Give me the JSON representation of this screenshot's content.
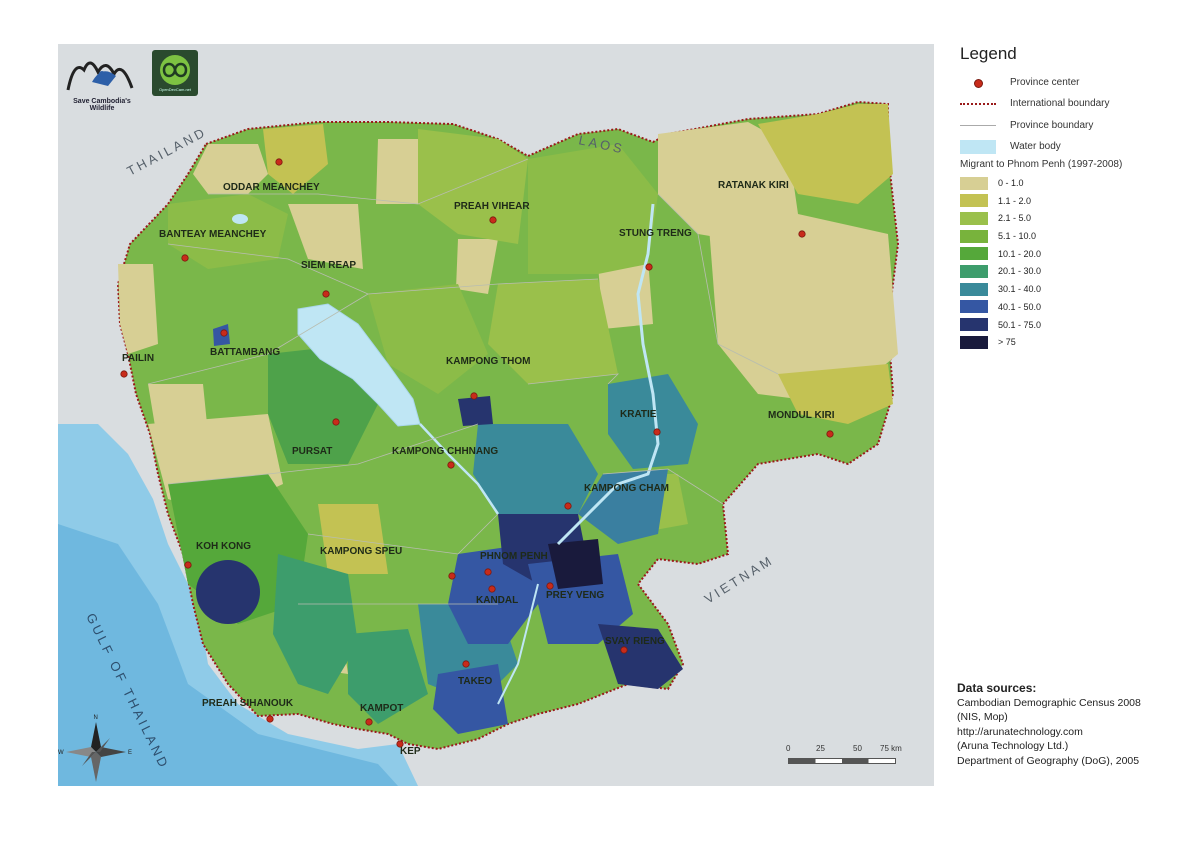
{
  "logos": {
    "save_cambodia_caption": "Save Cambodia's Wildlife",
    "opendevelopment_caption": "OpenDevCam.net"
  },
  "map": {
    "country_labels": [
      "THAILAND",
      "LAOS",
      "VIETNAM"
    ],
    "sea_label": "GULF OF THAILAND",
    "province_labels": [
      "ODDAR MEANCHEY",
      "PREAH VIHEAR",
      "RATANAK KIRI",
      "BANTEAY MEANCHEY",
      "STUNG TRENG",
      "SIEM REAP",
      "PAILIN",
      "BATTAMBANG",
      "KAMPONG THOM",
      "KRATIE",
      "MONDUL KIRI",
      "PURSAT",
      "KAMPONG CHHNANG",
      "KAMPONG CHAM",
      "KOH KONG",
      "KAMPONG SPEU",
      "PHNOM PENH",
      "KANDAL",
      "PREY VENG",
      "SVAY RIENG",
      "TAKEO",
      "PREAH SIHANOUK",
      "KAMPOT",
      "KEP"
    ],
    "compass": {
      "n": "N",
      "s": "S",
      "e": "E",
      "w": "W"
    },
    "colors": {
      "water": "#bfe6f4",
      "boundary": "#9a1a1a",
      "province_center": "#c82b1a"
    }
  },
  "legend": {
    "title": "Legend",
    "symbols": [
      "Province center",
      "International boundary",
      "Province boundary",
      "Water body"
    ],
    "ramp_title": "Migrant to Phnom Penh (1997-2008)",
    "classes": [
      {
        "label": "0 - 1.0",
        "color": "#d7cf94"
      },
      {
        "label": "1.1 - 2.0",
        "color": "#c3c253"
      },
      {
        "label": "2.1 - 5.0",
        "color": "#9ac04b"
      },
      {
        "label": "5.1 - 10.0",
        "color": "#78b33c"
      },
      {
        "label": "10.1 - 20.0",
        "color": "#55a83a"
      },
      {
        "label": "20.1 - 30.0",
        "color": "#3d9d6c"
      },
      {
        "label": "30.1 - 40.0",
        "color": "#3a8a9a"
      },
      {
        "label": "40.1 - 50.0",
        "color": "#3557a3"
      },
      {
        "label": "50.1 - 75.0",
        "color": "#26346e"
      },
      {
        "label": "> 75",
        "color": "#191a3c"
      }
    ]
  },
  "sources": {
    "title": "Data sources:",
    "lines": [
      "Cambodian Demographic Census 2008",
      "(NIS, Mop)",
      "http://arunatechnology.com",
      "(Aruna Technology Ltd.)",
      "Department of Geography (DoG), 2005"
    ]
  },
  "scale": {
    "ticks": [
      "0",
      "25",
      "50",
      "75 km"
    ]
  }
}
